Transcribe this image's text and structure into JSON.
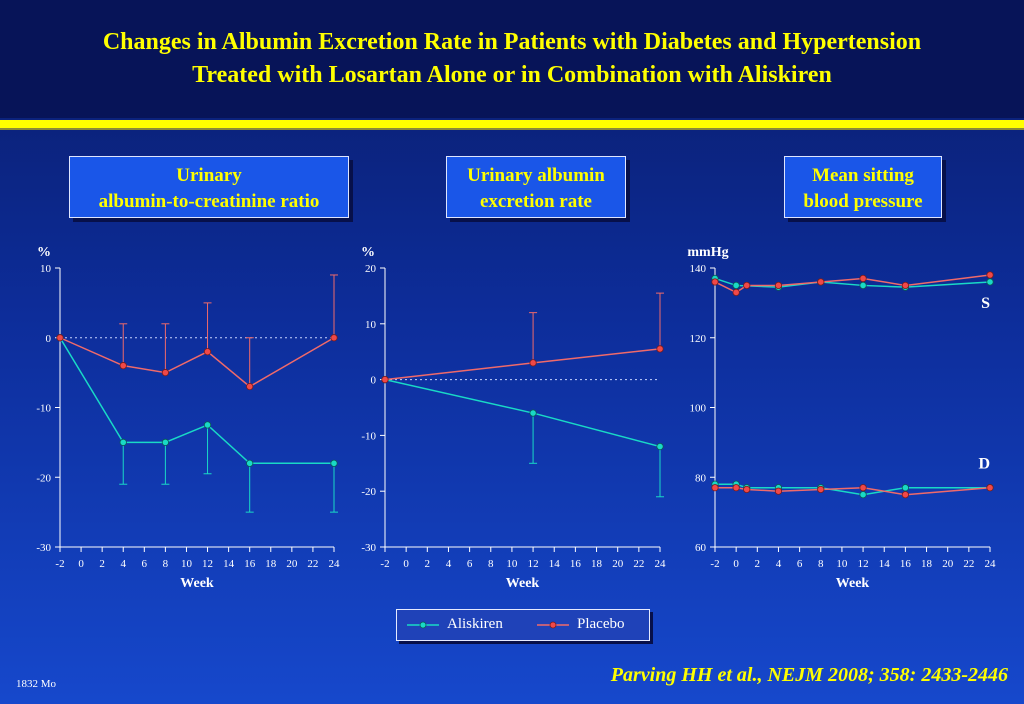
{
  "title": {
    "line1": "Changes in Albumin Excretion Rate in Patients with Diabetes and Hypertension",
    "line2": "Treated with Losartan Alone or in Combination with Aliskiren"
  },
  "panels": [
    {
      "line1": "Urinary",
      "line2": "albumin-to-creatinine ratio"
    },
    {
      "line1": "Urinary albumin",
      "line2": "excretion rate"
    },
    {
      "line1": "Mean sitting",
      "line2": "blood pressure"
    }
  ],
  "legend": {
    "aliskiren": "Aliskiren",
    "placebo": "Placebo"
  },
  "footnote": "1832 Mo",
  "citation": "Parving HH et al., NEJM 2008; 358: 2433-2446",
  "colors": {
    "aliskiren": "#19d9c6",
    "placebo": "#f06a6a",
    "axis": "#ffffff",
    "title": "#ffff00"
  },
  "chart_data": [
    {
      "type": "line",
      "ylabel": "%",
      "xlabel": "Week",
      "xticks": [
        -2,
        0,
        2,
        4,
        6,
        8,
        10,
        12,
        14,
        16,
        18,
        20,
        22,
        24
      ],
      "yticks": [
        10,
        0,
        -10,
        -20,
        -30
      ],
      "ylim": [
        -30,
        10
      ],
      "reference_line": 0,
      "series": [
        {
          "name": "Aliskiren",
          "x": [
            -2,
            4,
            8,
            12,
            16,
            24
          ],
          "y": [
            0,
            -15,
            -15,
            -12.5,
            -18,
            -18
          ],
          "err_low": [
            null,
            -21,
            -21,
            -19.5,
            -25,
            -25
          ]
        },
        {
          "name": "Placebo",
          "x": [
            -2,
            4,
            8,
            12,
            16,
            24
          ],
          "y": [
            0,
            -4,
            -5,
            -2,
            -7,
            0
          ],
          "err_high": [
            null,
            2,
            2,
            5,
            0,
            9
          ]
        }
      ]
    },
    {
      "type": "line",
      "ylabel": "%",
      "xlabel": "Week",
      "xticks": [
        -2,
        0,
        2,
        4,
        6,
        8,
        10,
        12,
        14,
        16,
        18,
        20,
        22,
        24
      ],
      "yticks": [
        20,
        10,
        0,
        -10,
        -20,
        -30
      ],
      "ylim": [
        -30,
        20
      ],
      "reference_line": 0,
      "series": [
        {
          "name": "Aliskiren",
          "x": [
            -2,
            12,
            24
          ],
          "y": [
            0,
            -6,
            -12
          ],
          "err_low": [
            null,
            -15,
            -21
          ]
        },
        {
          "name": "Placebo",
          "x": [
            -2,
            12,
            24
          ],
          "y": [
            0,
            3,
            5.5
          ],
          "err_high": [
            null,
            12,
            15.5
          ]
        }
      ]
    },
    {
      "type": "line",
      "ylabel": "mmHg",
      "xlabel": "Week",
      "xticks": [
        -2,
        0,
        2,
        4,
        6,
        8,
        10,
        12,
        14,
        16,
        18,
        20,
        22,
        24
      ],
      "yticks": [
        140,
        120,
        100,
        80,
        60
      ],
      "ylim": [
        60,
        140
      ],
      "annotations": [
        {
          "text": "S",
          "y": 130
        },
        {
          "text": "D",
          "y": 84
        }
      ],
      "series": [
        {
          "name": "Aliskiren",
          "x": [
            -2,
            0,
            4,
            8,
            12,
            16,
            24
          ],
          "y": [
            137,
            135,
            134.5,
            136,
            135,
            134.5,
            136
          ]
        },
        {
          "name": "Placebo",
          "x": [
            -2,
            0,
            1,
            4,
            8,
            12,
            16,
            24
          ],
          "y": [
            136,
            133,
            135,
            135,
            136,
            137,
            135,
            138
          ]
        },
        {
          "name": "Aliskiren",
          "x": [
            -2,
            0,
            1,
            4,
            8,
            12,
            16,
            24
          ],
          "y": [
            78,
            78,
            77,
            77,
            77,
            75,
            77,
            77
          ]
        },
        {
          "name": "Placebo",
          "x": [
            -2,
            0,
            1,
            4,
            8,
            12,
            16,
            24
          ],
          "y": [
            77,
            77,
            76.5,
            76,
            76.5,
            77,
            75,
            77
          ]
        }
      ]
    }
  ]
}
